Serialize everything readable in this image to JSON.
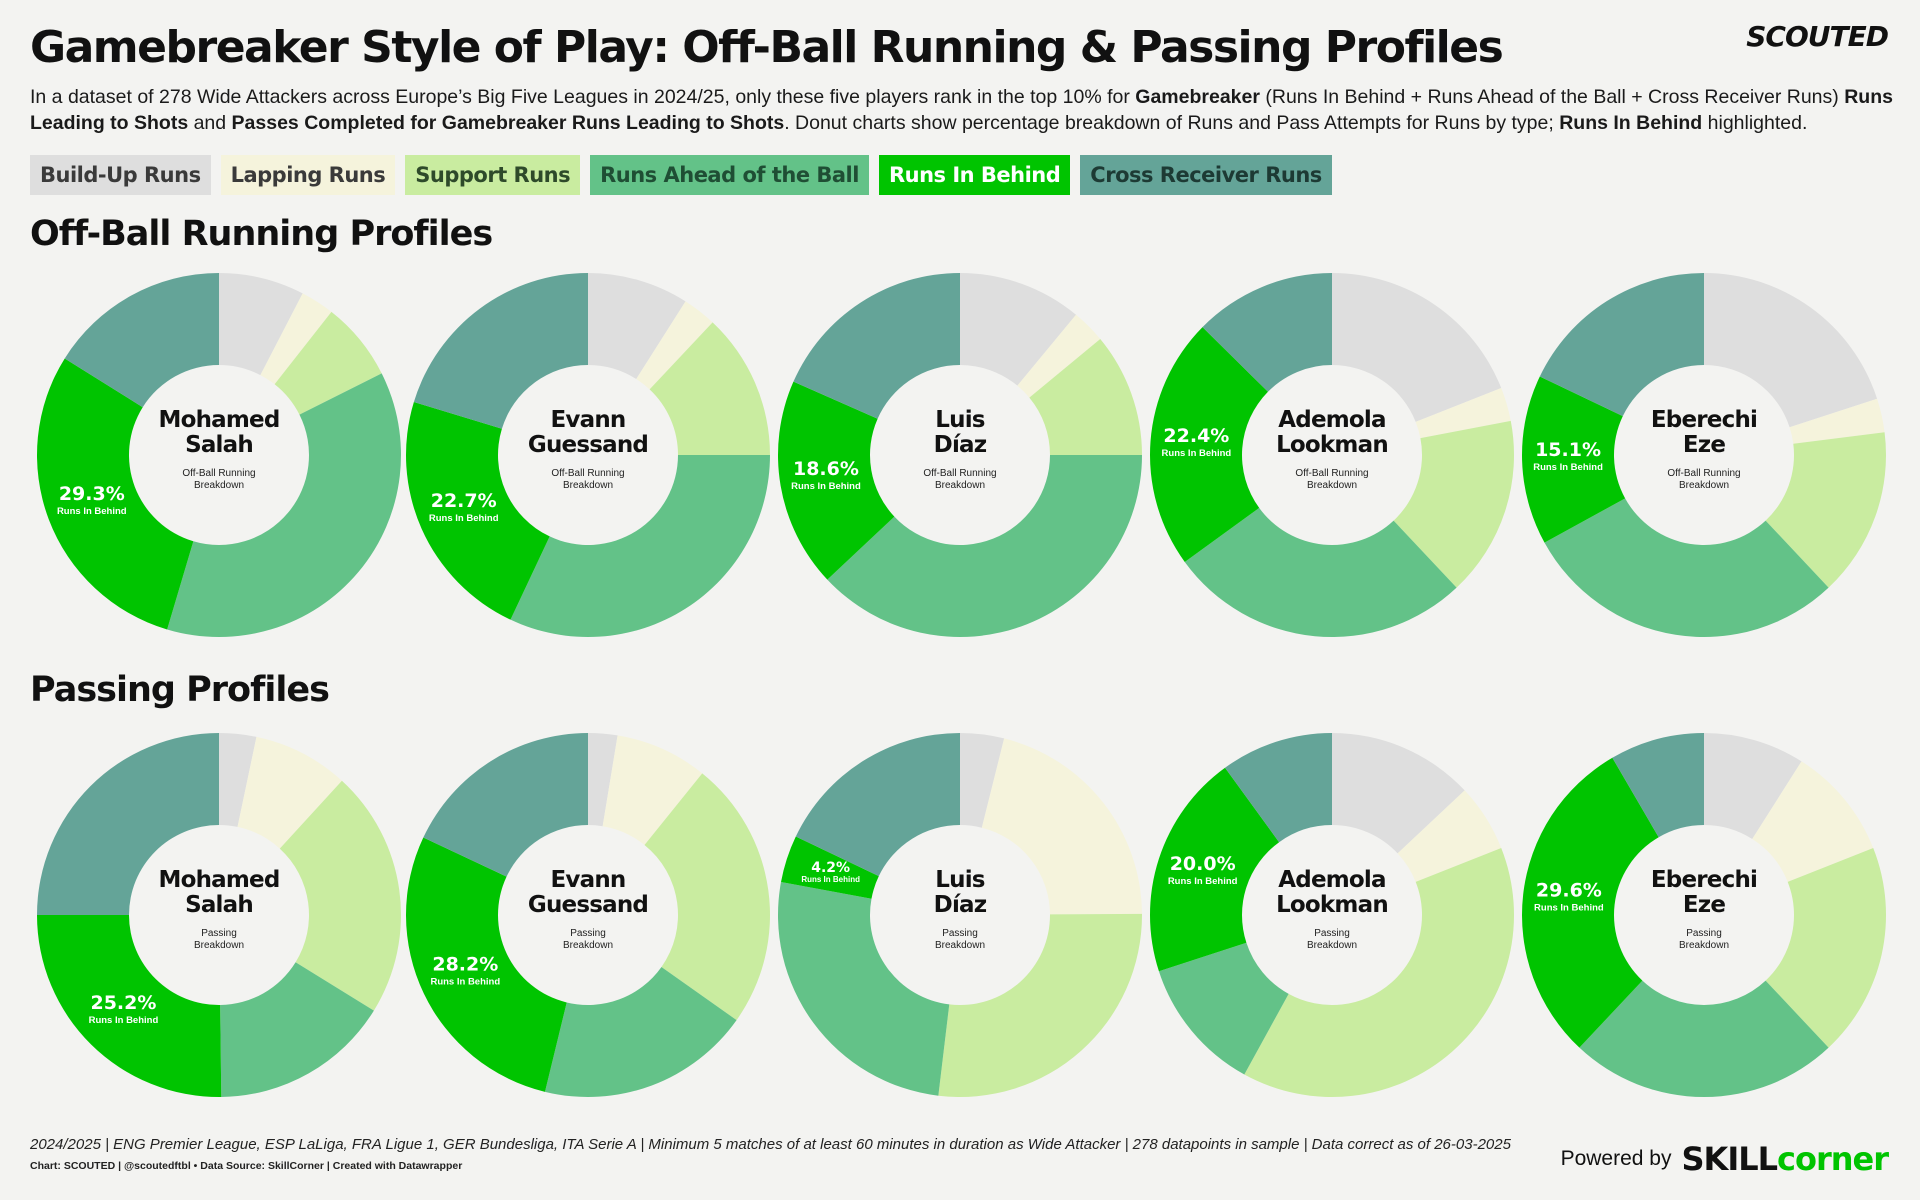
{
  "title": "Gamebreaker Style of Play: Off-Ball Running & Passing Profiles",
  "brand": "SCOUTED",
  "subtitle": {
    "p1": "In a dataset of 278 Wide Attackers across Europe’s Big Five Leagues in 2024/25, only these five players rank in the top 10% for ",
    "b1": "Gamebreaker",
    "p2": " (Runs In Behind + Runs Ahead of the Ball + Cross Receiver Runs) ",
    "b2": "Runs Leading to Shots",
    "p3": " and ",
    "b3": "Passes Completed for Gamebreaker Runs Leading to Shots",
    "p4": ". Donut charts show percentage breakdown of Runs and Pass Attempts for Runs by type; ",
    "b4": "Runs In Behind",
    "p5": " highlighted."
  },
  "legend": [
    {
      "label": "Build-Up Runs",
      "color": "#dedede",
      "text_color": "#3a3a3a"
    },
    {
      "label": "Lapping Runs",
      "color": "#f5f3dc",
      "text_color": "#3a3a3a"
    },
    {
      "label": "Support Runs",
      "color": "#c9eca0",
      "text_color": "#2e4a2a"
    },
    {
      "label": "Runs Ahead of the Ball",
      "color": "#63c288",
      "text_color": "#1f4e34"
    },
    {
      "label": "Runs In Behind",
      "color": "#00c400",
      "text_color": "#ffffff"
    },
    {
      "label": "Cross Receiver Runs",
      "color": "#64a498",
      "text_color": "#1d3a34"
    }
  ],
  "sections": {
    "running": "Off-Ball Running Profiles",
    "passing": "Passing Profiles"
  },
  "chart_data": [
    {
      "type": "pie",
      "title": "Off-Ball Running Profiles",
      "breakdown_label": "Off-Ball Running\nBreakdown",
      "highlight_label": "Runs In Behind",
      "categories": [
        "Build-Up Runs",
        "Lapping Runs",
        "Support Runs",
        "Runs Ahead of the Ball",
        "Runs In Behind",
        "Cross Receiver Runs"
      ],
      "players": [
        {
          "name": "Mohamed\nSalah",
          "values": [
            7.6,
            3.0,
            7.0,
            37.0,
            29.3,
            16.1
          ],
          "highlight_text": "29.3%"
        },
        {
          "name": "Evann\nGuessand",
          "values": [
            9.0,
            3.0,
            13.0,
            32.0,
            22.7,
            20.3
          ],
          "highlight_text": "22.7%"
        },
        {
          "name": "Luis\nDíaz",
          "values": [
            11.0,
            3.0,
            11.0,
            38.0,
            18.6,
            18.4
          ],
          "highlight_text": "18.6%"
        },
        {
          "name": "Ademola\nLookman",
          "values": [
            19.0,
            3.0,
            16.0,
            27.0,
            22.4,
            12.6
          ],
          "highlight_text": "22.4%"
        },
        {
          "name": "Eberechi\nEze",
          "values": [
            20.0,
            3.0,
            15.0,
            29.0,
            15.1,
            17.9
          ],
          "highlight_text": "15.1%"
        }
      ]
    },
    {
      "type": "pie",
      "title": "Passing Profiles",
      "breakdown_label": "Passing\nBreakdown",
      "highlight_label": "Runs In Behind",
      "categories": [
        "Build-Up Runs",
        "Lapping Runs",
        "Support Runs",
        "Runs Ahead of the Ball",
        "Runs In Behind",
        "Cross Receiver Runs"
      ],
      "players": [
        {
          "name": "Mohamed\nSalah",
          "values": [
            3.3,
            8.5,
            22.0,
            16.0,
            25.2,
            25.0
          ],
          "highlight_text": "25.2%"
        },
        {
          "name": "Evann\nGuessand",
          "values": [
            2.6,
            8.2,
            24.0,
            19.0,
            28.2,
            18.0
          ],
          "highlight_text": "28.2%"
        },
        {
          "name": "Luis\nDíaz",
          "values": [
            3.9,
            21.0,
            27.0,
            26.0,
            4.2,
            17.9
          ],
          "highlight_text": "4.2%"
        },
        {
          "name": "Ademola\nLookman",
          "values": [
            13.0,
            6.0,
            39.0,
            12.0,
            20.0,
            10.0
          ],
          "highlight_text": "20.0%"
        },
        {
          "name": "Eberechi\nEze",
          "values": [
            9.0,
            10.0,
            19.0,
            24.0,
            29.6,
            8.4
          ],
          "highlight_text": "29.6%"
        }
      ]
    }
  ],
  "footer": {
    "line1": "2024/2025 | ENG Premier League, ESP LaLiga, FRA Ligue 1, GER Bundesliga, ITA Serie A | Minimum 5 matches of at least 60 minutes in duration as Wide Attacker | 278 datapoints in sample | Data correct as of 26-03-2025",
    "line2": "Chart: SCOUTED | @scoutedftbl • Data Source: SkillCorner | Created with Datawrapper",
    "powered_label": "Powered by",
    "provider_a": "SKILL",
    "provider_b": "corner"
  },
  "colors": {
    "background": "#f3f3f1",
    "text": "#111111",
    "provider_accent": "#00c400"
  }
}
